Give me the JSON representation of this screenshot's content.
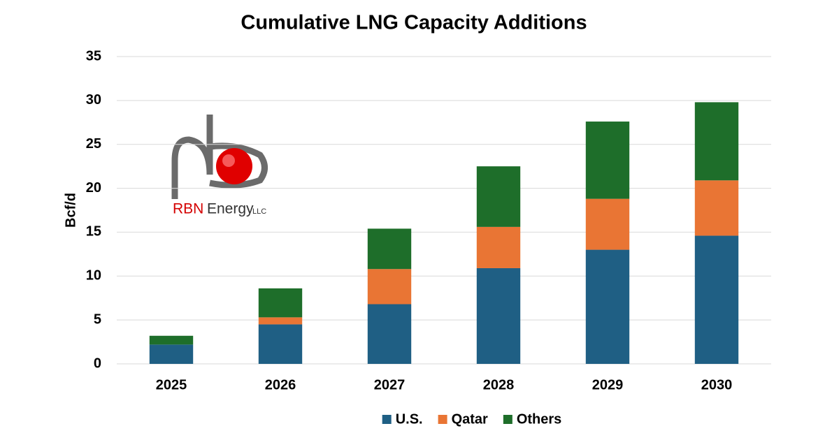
{
  "chart_data": {
    "type": "stacked-bar",
    "title": "Cumulative LNG Capacity Additions",
    "y_label": "Bcf/d",
    "categories": [
      "2025",
      "2026",
      "2027",
      "2028",
      "2029",
      "2030"
    ],
    "series": [
      {
        "name": "U.S.",
        "color": "#1f5f84",
        "values": [
          2.2,
          4.5,
          6.8,
          10.9,
          13.0,
          14.6
        ]
      },
      {
        "name": "Qatar",
        "color": "#e97534",
        "values": [
          0,
          0.8,
          4.0,
          4.7,
          5.8,
          6.3
        ]
      },
      {
        "name": "Others",
        "color": "#1e6e2a",
        "values": [
          1.0,
          3.3,
          4.6,
          6.9,
          8.8,
          8.9
        ]
      }
    ],
    "ylim": [
      0,
      35
    ],
    "yticks": [
      0,
      5,
      10,
      15,
      20,
      25,
      30,
      35
    ],
    "grid": true,
    "legend": "bottom"
  },
  "logo": {
    "name": "RBN",
    "text": "Energy",
    "suffix": "LLC"
  }
}
